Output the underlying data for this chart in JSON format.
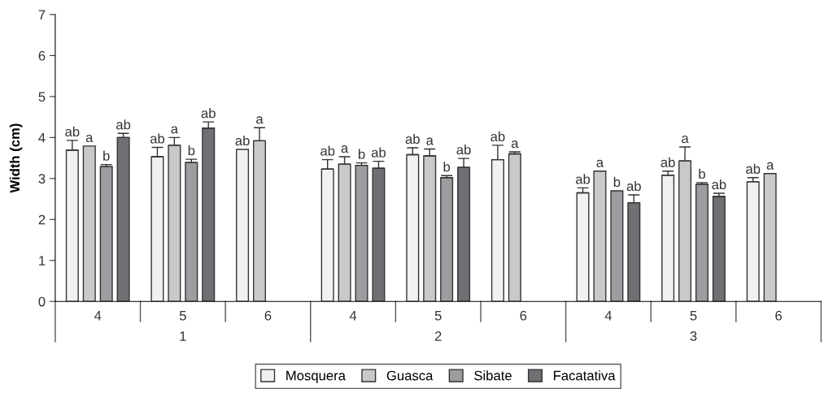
{
  "chart_data": {
    "type": "bar",
    "ylabel": "Width (cm)",
    "categories": [
      "4",
      "5",
      "6",
      "4",
      "5",
      "6",
      "4",
      "5",
      "6"
    ],
    "annotations": [
      "1",
      "2",
      "3"
    ],
    "series": [
      {
        "name": "Mosquera",
        "color": "#f0f1f2",
        "values": [
          3.69,
          3.53,
          3.71,
          3.23,
          3.58,
          3.46,
          2.65,
          3.08,
          2.92
        ],
        "errors": [
          0.24,
          0.23,
          null,
          0.23,
          0.17,
          0.35,
          0.12,
          0.1,
          0.1
        ],
        "value_labels": [
          "ab",
          "ab",
          "ab",
          "ab",
          "ab",
          "ab",
          "ab",
          "ab",
          "ab"
        ]
      },
      {
        "name": "Guasca",
        "color": "#c8c9cb",
        "values": [
          3.79,
          3.81,
          3.92,
          3.35,
          3.55,
          3.6,
          3.18,
          3.43,
          3.12
        ],
        "errors": [
          null,
          0.19,
          0.32,
          0.18,
          0.17,
          0.05,
          null,
          0.34,
          null
        ],
        "value_labels": [
          "a",
          "a",
          "a",
          "a",
          "a",
          "a",
          "a",
          "a",
          "a"
        ]
      },
      {
        "name": "Sibate",
        "color": "#9c9da0",
        "values": [
          3.29,
          3.39,
          null,
          3.32,
          3.02,
          null,
          2.7,
          2.86,
          null
        ],
        "errors": [
          0.05,
          0.08,
          null,
          0.06,
          0.05,
          null,
          null,
          0.04,
          null
        ],
        "value_labels": [
          "b",
          "b",
          null,
          "b",
          "b",
          null,
          "b",
          "b",
          null
        ]
      },
      {
        "name": "Facatativa",
        "color": "#6f7074",
        "values": [
          4.0,
          4.23,
          null,
          3.25,
          3.27,
          null,
          2.41,
          2.56,
          null
        ],
        "errors": [
          0.1,
          0.15,
          null,
          0.17,
          0.22,
          null,
          0.19,
          0.08,
          null
        ],
        "value_labels": [
          "ab",
          "ab",
          null,
          "ab",
          "ab",
          null,
          "ab",
          "ab",
          null
        ]
      }
    ],
    "ylim": [
      0,
      7
    ],
    "yticks": [
      0,
      1,
      2,
      3,
      4,
      5,
      6,
      7
    ],
    "grid": false,
    "legend": "bottom"
  }
}
